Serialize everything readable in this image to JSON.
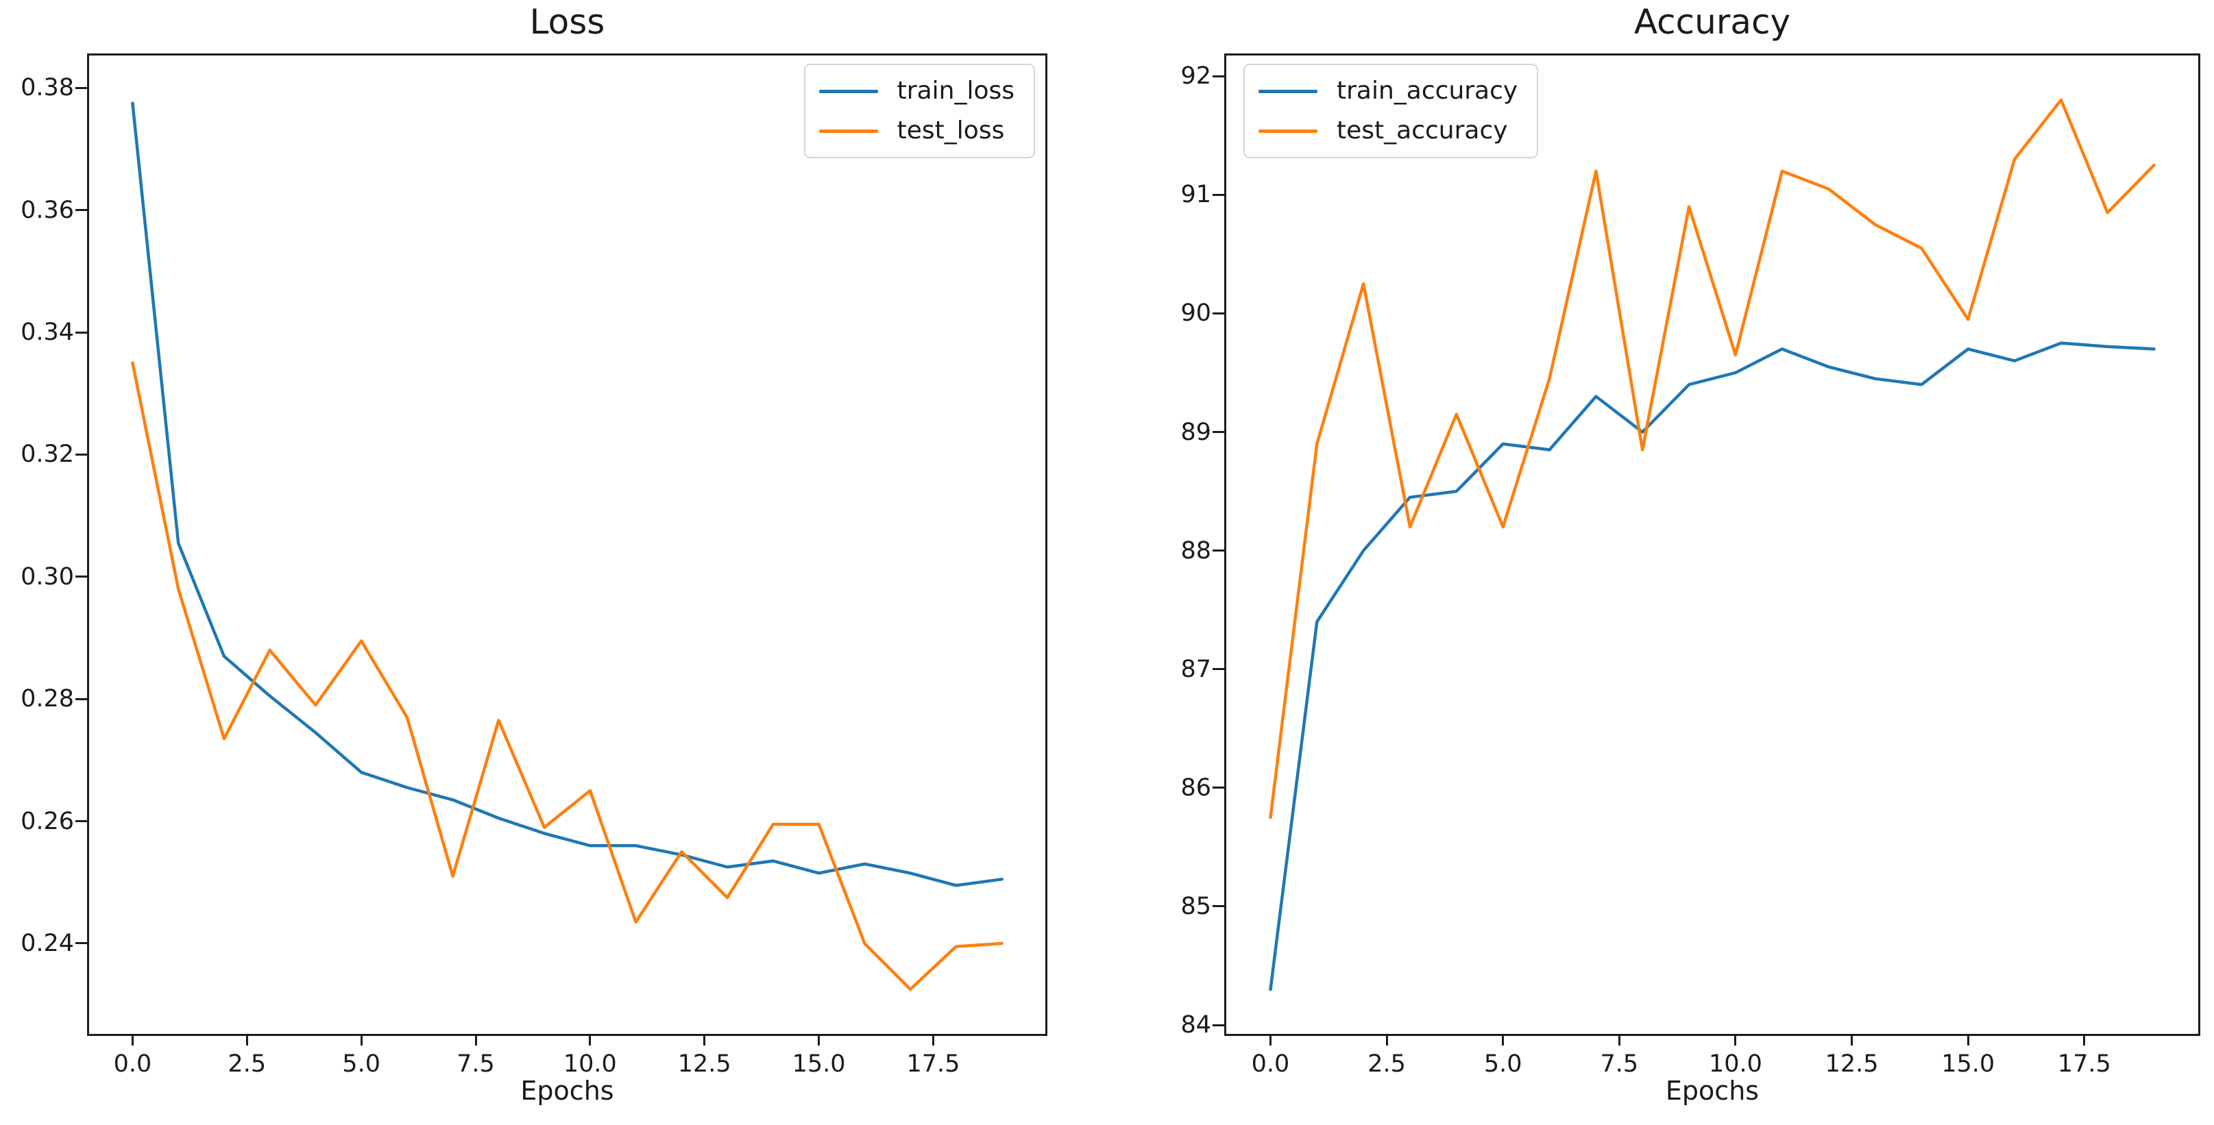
{
  "figure": {
    "background": "#ffffff",
    "text_color": "#1a1a1a",
    "spine_color": "#1c1c1c"
  },
  "chart_data": [
    {
      "type": "line",
      "title": "Loss",
      "xlabel": "Epochs",
      "ylabel": "",
      "grid": false,
      "legend_position": "top-right",
      "x": [
        0,
        1,
        2,
        3,
        4,
        5,
        6,
        7,
        8,
        9,
        10,
        11,
        12,
        13,
        14,
        15,
        16,
        17,
        18,
        19
      ],
      "xlim": [
        -0.95,
        19.95
      ],
      "ylim": [
        0.2252,
        0.3853
      ],
      "xticks": [
        0,
        2.5,
        5,
        7.5,
        10,
        12.5,
        15,
        17.5
      ],
      "xtick_labels": [
        "0.0",
        "2.5",
        "5.0",
        "7.5",
        "10.0",
        "12.5",
        "15.0",
        "17.5"
      ],
      "yticks": [
        0.24,
        0.26,
        0.28,
        0.3,
        0.32,
        0.34,
        0.36,
        0.38
      ],
      "ytick_labels": [
        "0.24",
        "0.26",
        "0.28",
        "0.30",
        "0.32",
        "0.34",
        "0.36",
        "0.38"
      ],
      "series": [
        {
          "name": "train_loss",
          "color": "#1f77b4",
          "values": [
            0.3775,
            0.3055,
            0.287,
            0.2805,
            0.2745,
            0.268,
            0.2655,
            0.2635,
            0.2605,
            0.258,
            0.256,
            0.256,
            0.2545,
            0.2525,
            0.2535,
            0.2515,
            0.253,
            0.2515,
            0.2495,
            0.2505
          ]
        },
        {
          "name": "test_loss",
          "color": "#ff7f0e",
          "values": [
            0.335,
            0.298,
            0.2735,
            0.288,
            0.279,
            0.2895,
            0.277,
            0.251,
            0.2765,
            0.259,
            0.265,
            0.2435,
            0.255,
            0.2475,
            0.2595,
            0.2595,
            0.24,
            0.2325,
            0.2395,
            0.24
          ]
        }
      ]
    },
    {
      "type": "line",
      "title": "Accuracy",
      "xlabel": "Epochs",
      "ylabel": "",
      "grid": false,
      "legend_position": "top-left",
      "x": [
        0,
        1,
        2,
        3,
        4,
        5,
        6,
        7,
        8,
        9,
        10,
        11,
        12,
        13,
        14,
        15,
        16,
        17,
        18,
        19
      ],
      "xlim": [
        -0.95,
        19.95
      ],
      "ylim": [
        83.925,
        92.175
      ],
      "xticks": [
        0,
        2.5,
        5,
        7.5,
        10,
        12.5,
        15,
        17.5
      ],
      "xtick_labels": [
        "0.0",
        "2.5",
        "5.0",
        "7.5",
        "10.0",
        "12.5",
        "15.0",
        "17.5"
      ],
      "yticks": [
        84,
        85,
        86,
        87,
        88,
        89,
        90,
        91,
        92
      ],
      "ytick_labels": [
        "84",
        "85",
        "86",
        "87",
        "88",
        "89",
        "90",
        "91",
        "92"
      ],
      "series": [
        {
          "name": "train_accuracy",
          "color": "#1f77b4",
          "values": [
            84.3,
            87.4,
            88.0,
            88.45,
            88.5,
            88.9,
            88.85,
            89.3,
            89.0,
            89.4,
            89.5,
            89.7,
            89.55,
            89.45,
            89.4,
            89.7,
            89.6,
            89.75,
            89.72,
            89.7
          ]
        },
        {
          "name": "test_accuracy",
          "color": "#ff7f0e",
          "values": [
            85.75,
            88.9,
            90.25,
            88.2,
            89.15,
            88.2,
            89.45,
            91.2,
            88.85,
            90.9,
            89.65,
            91.2,
            91.05,
            90.75,
            90.55,
            89.95,
            91.3,
            91.8,
            90.85,
            91.25
          ]
        }
      ]
    }
  ]
}
